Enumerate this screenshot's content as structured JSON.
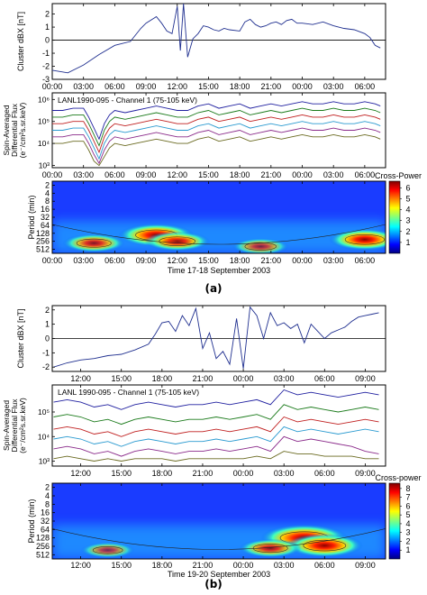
{
  "figure_a": {
    "caption": "(a)",
    "xlabel": "Time 17-18 September 2003",
    "ticks": [
      "00:00",
      "03:00",
      "06:00",
      "09:00",
      "12:00",
      "15:00",
      "18:00",
      "21:00",
      "00:00",
      "03:00",
      "06:00"
    ],
    "panel1": {
      "ylabel": "Cluster dBX [nT]",
      "yticks": [
        "2",
        "1",
        "0",
        "-1",
        "-2",
        "-3"
      ],
      "ylim": [
        -3,
        2.8
      ]
    },
    "panel2": {
      "title": "LANL1990-095 -  Channel 1 (75-105 keV)",
      "ylabel_lines": [
        "Spin-Averaged",
        "Differential Flux",
        "(e⁻/cm²s.sr.keV)"
      ],
      "yticks": [
        "10⁶",
        "10⁵",
        "10⁴",
        "10³"
      ],
      "scale": "log"
    },
    "panel3": {
      "ylabel": "Period (min)",
      "yticks": [
        "2",
        "4",
        "8",
        "16",
        "32",
        "64",
        "128",
        "256",
        "512"
      ],
      "colorbar_title": "Cross-Power",
      "colorbar_ticks": [
        "6",
        "5",
        "4",
        "3",
        "2",
        "1"
      ],
      "colorbar_max": 6.6
    }
  },
  "figure_b": {
    "caption": "(b)",
    "xlabel": "Time 19-20 September 2003",
    "ticks": [
      "12:00",
      "15:00",
      "18:00",
      "21:00",
      "00:00",
      "03:00",
      "06:00",
      "09:00"
    ],
    "panel1": {
      "ylabel": "Cluster dBX [nT]",
      "yticks": [
        "2",
        "1",
        "0",
        "-1",
        "-2"
      ],
      "ylim": [
        -2.3,
        2.3
      ]
    },
    "panel2": {
      "title": "LANL 1990-095 - Channel 1 (75-105 keV)",
      "ylabel_lines": [
        "Spin-Averaged",
        "Differential Flux",
        "(e⁻/cm²s.sr.keV)"
      ],
      "yticks": [
        "10⁵",
        "10⁴",
        "10³"
      ],
      "scale": "log"
    },
    "panel3": {
      "ylabel": "Period (min)",
      "yticks": [
        "2",
        "4",
        "8",
        "16",
        "32",
        "64",
        "128",
        "256",
        "512"
      ],
      "colorbar_title": "Cross-power",
      "colorbar_ticks": [
        "8",
        "7",
        "6",
        "5",
        "4",
        "3",
        "2",
        "1"
      ],
      "colorbar_max": 8.6
    }
  },
  "chart_data": [
    {
      "type": "line",
      "name": "figure_a_panel1",
      "xlabel": "Time 17-18 September 2003",
      "ylabel": "Cluster dBX [nT]",
      "x_hours": [
        0,
        1.5,
        3,
        4.5,
        6,
        7.5,
        8.5,
        9,
        10,
        10.5,
        11,
        11.5,
        12,
        12.3,
        12.6,
        13,
        13.5,
        14,
        14.5,
        15,
        15.5,
        16,
        16.5,
        17,
        18,
        18.5,
        19,
        19.5,
        20,
        20.5,
        21,
        21.5,
        22,
        22.5,
        23,
        23.5,
        24,
        25,
        26,
        27,
        28,
        29,
        30,
        30.5,
        31,
        31.5
      ],
      "values": [
        -2.3,
        -2.5,
        -1.9,
        -1.1,
        -0.4,
        -0.1,
        0.9,
        1.3,
        1.8,
        1.3,
        0.7,
        0.5,
        2.6,
        -0.8,
        2.8,
        -1.3,
        0.1,
        0.5,
        1.1,
        1.0,
        0.8,
        0.7,
        0.9,
        0.8,
        0.7,
        1.4,
        1.6,
        1.2,
        1.0,
        1.1,
        1.3,
        1.4,
        1.2,
        1.5,
        1.6,
        1.3,
        1.3,
        1.2,
        1.4,
        1.1,
        0.9,
        0.8,
        0.5,
        0.2,
        -0.4,
        -0.6
      ],
      "ylim": [
        -3,
        2.8
      ]
    },
    {
      "type": "line",
      "name": "figure_a_panel2",
      "title": "LANL1990-095 -  Channel 1 (75-105 keV)",
      "scale": "log",
      "x_hours": [
        0,
        1,
        2,
        3,
        3.5,
        4,
        4.5,
        5,
        5.5,
        6,
        7,
        8,
        9,
        10,
        11,
        12,
        13,
        14,
        15,
        16,
        17,
        18,
        19,
        20,
        21,
        22,
        23,
        24,
        25,
        26,
        27,
        28,
        29,
        30,
        31,
        31.5
      ],
      "series": [
        {
          "values_log10": [
            5.5,
            5.5,
            5.6,
            5.6,
            5.2,
            4.7,
            4.2,
            4.9,
            5.3,
            5.5,
            5.4,
            5.5,
            5.6,
            5.7,
            5.6,
            5.5,
            5.5,
            5.7,
            5.8,
            5.6,
            5.7,
            5.8,
            5.6,
            5.7,
            5.8,
            5.7,
            5.8,
            5.9,
            5.8,
            5.8,
            5.9,
            5.8,
            5.8,
            5.9,
            5.8,
            5.7
          ]
        },
        {
          "values_log10": [
            5.2,
            5.2,
            5.3,
            5.3,
            4.9,
            4.4,
            3.9,
            4.6,
            5.0,
            5.2,
            5.1,
            5.2,
            5.3,
            5.4,
            5.3,
            5.2,
            5.2,
            5.4,
            5.5,
            5.3,
            5.4,
            5.5,
            5.3,
            5.4,
            5.5,
            5.4,
            5.5,
            5.6,
            5.5,
            5.5,
            5.6,
            5.5,
            5.5,
            5.6,
            5.5,
            5.4
          ]
        },
        {
          "values_log10": [
            4.9,
            4.9,
            5.0,
            5.0,
            4.6,
            4.1,
            3.6,
            4.3,
            4.7,
            4.9,
            4.8,
            4.9,
            5.0,
            5.1,
            5.0,
            4.9,
            4.9,
            5.1,
            5.2,
            5.0,
            5.1,
            5.2,
            5.0,
            5.1,
            5.2,
            5.1,
            5.2,
            5.3,
            5.2,
            5.2,
            5.3,
            5.2,
            5.2,
            5.3,
            5.2,
            5.1
          ]
        },
        {
          "values_log10": [
            4.6,
            4.6,
            4.7,
            4.7,
            4.3,
            3.8,
            3.3,
            4.0,
            4.4,
            4.6,
            4.5,
            4.6,
            4.7,
            4.8,
            4.7,
            4.6,
            4.6,
            4.8,
            4.9,
            4.7,
            4.8,
            4.9,
            4.7,
            4.8,
            4.9,
            4.8,
            4.9,
            5.0,
            4.9,
            4.9,
            5.0,
            4.9,
            4.9,
            5.0,
            4.9,
            4.8
          ]
        },
        {
          "values_log10": [
            4.3,
            4.3,
            4.4,
            4.4,
            4.0,
            3.5,
            3.1,
            3.7,
            4.1,
            4.3,
            4.2,
            4.3,
            4.4,
            4.5,
            4.4,
            4.3,
            4.3,
            4.5,
            4.6,
            4.4,
            4.5,
            4.6,
            4.4,
            4.5,
            4.6,
            4.5,
            4.6,
            4.7,
            4.6,
            4.6,
            4.7,
            4.6,
            4.6,
            4.7,
            4.6,
            4.5
          ]
        },
        {
          "values_log10": [
            4.0,
            4.0,
            4.1,
            4.1,
            3.7,
            3.2,
            3.0,
            3.4,
            3.8,
            4.0,
            3.9,
            4.0,
            4.1,
            4.2,
            4.1,
            4.0,
            4.0,
            4.2,
            4.3,
            4.1,
            4.2,
            4.3,
            4.1,
            4.2,
            4.3,
            4.2,
            4.3,
            4.4,
            4.3,
            4.3,
            4.4,
            4.3,
            4.3,
            4.4,
            4.3,
            4.2
          ]
        }
      ]
    },
    {
      "type": "heatmap",
      "name": "figure_a_panel3",
      "ylabel": "Period (min)",
      "blobs": [
        {
          "x_hours": 10,
          "period_min": 150,
          "power": 6.3
        },
        {
          "x_hours": 12,
          "period_min": 256,
          "power": 4.5
        },
        {
          "x_hours": 4,
          "period_min": 300,
          "power": 4.0
        },
        {
          "x_hours": 30,
          "period_min": 220,
          "power": 5.5
        },
        {
          "x_hours": 20,
          "period_min": 400,
          "power": 3.0
        }
      ]
    },
    {
      "type": "line",
      "name": "figure_b_panel1",
      "xlabel": "Time 19-20 September 2003",
      "ylabel": "Cluster dBX [nT]",
      "x_hours": [
        10,
        11,
        12,
        13,
        14,
        15,
        16,
        17,
        17.5,
        18,
        18.5,
        19,
        19.5,
        20,
        20.5,
        21,
        21.5,
        22,
        22.5,
        23,
        23.5,
        24,
        24.5,
        25,
        25.5,
        26,
        26.5,
        27,
        27.5,
        28,
        28.5,
        29,
        29.5,
        30,
        30.5,
        31,
        31.5,
        32,
        32.5,
        33,
        33.5,
        34
      ],
      "values": [
        -2.0,
        -1.7,
        -1.5,
        -1.4,
        -1.2,
        -1.1,
        -0.8,
        -0.4,
        0.3,
        1.1,
        1.2,
        0.5,
        1.6,
        0.9,
        2.1,
        -0.7,
        0.4,
        -1.4,
        -0.9,
        -1.8,
        1.4,
        -2.1,
        2.2,
        1.6,
        0.0,
        1.8,
        0.9,
        1.1,
        0.7,
        1.0,
        -0.3,
        1.0,
        0.5,
        0.0,
        0.4,
        0.6,
        0.8,
        1.2,
        1.5,
        1.6,
        1.7,
        1.8
      ],
      "ylim": [
        -2.3,
        2.3
      ]
    },
    {
      "type": "line",
      "name": "figure_b_panel2",
      "title": "LANL 1990-095 - Channel 1 (75-105 keV)",
      "scale": "log",
      "x_hours": [
        10,
        11,
        12,
        13,
        14,
        15,
        16,
        17,
        18,
        19,
        20,
        21,
        22,
        23,
        24,
        25,
        26,
        27,
        28,
        29,
        30,
        31,
        32,
        33,
        34
      ],
      "series": [
        {
          "values_log10": [
            5.4,
            5.5,
            5.4,
            5.2,
            5.3,
            5.1,
            5.3,
            5.4,
            5.3,
            5.2,
            5.3,
            5.3,
            5.4,
            5.3,
            5.4,
            5.5,
            5.3,
            5.9,
            5.7,
            5.8,
            5.7,
            5.6,
            5.7,
            5.8,
            5.7
          ]
        },
        {
          "values_log10": [
            4.8,
            4.9,
            4.8,
            4.6,
            4.7,
            4.5,
            4.7,
            4.8,
            4.7,
            4.6,
            4.7,
            4.7,
            4.8,
            4.7,
            4.8,
            4.9,
            4.7,
            5.3,
            5.1,
            5.2,
            5.1,
            5.0,
            5.1,
            5.2,
            5.1
          ]
        },
        {
          "values_log10": [
            4.3,
            4.4,
            4.3,
            4.1,
            4.2,
            4.0,
            4.2,
            4.3,
            4.2,
            4.1,
            4.2,
            4.2,
            4.3,
            4.2,
            4.3,
            4.4,
            4.2,
            4.8,
            4.6,
            4.7,
            4.6,
            4.5,
            4.6,
            4.7,
            4.6
          ]
        },
        {
          "values_log10": [
            3.9,
            4.0,
            3.9,
            3.7,
            3.8,
            3.6,
            3.8,
            3.9,
            3.8,
            3.7,
            3.8,
            3.8,
            3.9,
            3.8,
            3.9,
            4.0,
            3.8,
            4.4,
            4.2,
            4.3,
            4.2,
            4.1,
            4.2,
            4.3,
            4.2
          ]
        },
        {
          "values_log10": [
            3.5,
            3.6,
            3.5,
            3.3,
            3.4,
            3.2,
            3.4,
            3.5,
            3.4,
            3.3,
            3.4,
            3.4,
            3.5,
            3.4,
            3.5,
            3.6,
            3.4,
            4.0,
            3.8,
            3.9,
            3.8,
            3.7,
            3.6,
            3.4,
            3.3
          ]
        },
        {
          "values_log10": [
            3.1,
            3.2,
            3.1,
            3.0,
            3.1,
            3.0,
            3.1,
            3.1,
            3.1,
            3.0,
            3.1,
            3.1,
            3.1,
            3.1,
            3.1,
            3.2,
            3.1,
            3.4,
            3.3,
            3.3,
            3.2,
            3.2,
            3.2,
            3.1,
            3.1
          ]
        }
      ]
    },
    {
      "type": "heatmap",
      "name": "figure_b_panel3",
      "ylabel": "Period (min)",
      "blobs": [
        {
          "x_hours": 28.5,
          "period_min": 128,
          "power": 8.3
        },
        {
          "x_hours": 30,
          "period_min": 240,
          "power": 6.5
        },
        {
          "x_hours": 26,
          "period_min": 300,
          "power": 4.0
        },
        {
          "x_hours": 14,
          "period_min": 350,
          "power": 2.5
        }
      ]
    }
  ]
}
